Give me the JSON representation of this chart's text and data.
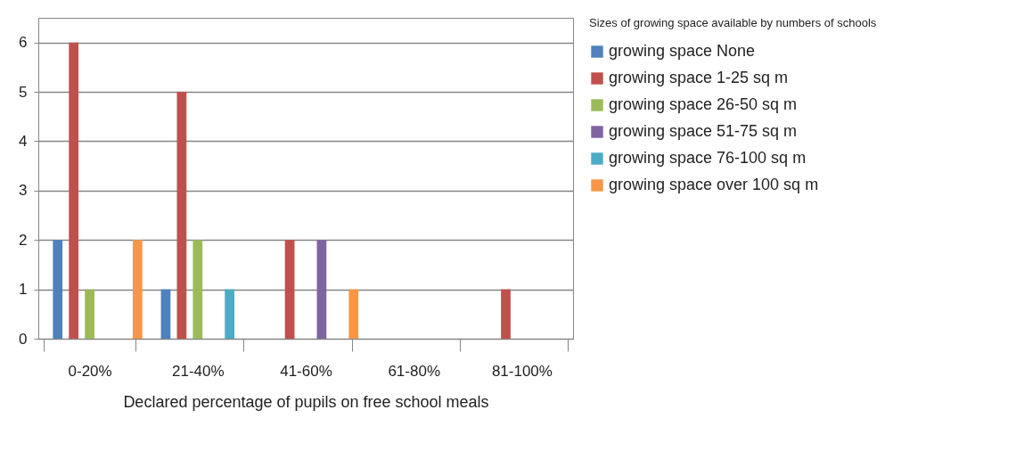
{
  "chart_data": {
    "type": "bar",
    "xlabel": "Declared percentage of pupils on free school meals",
    "legend_title": "Sizes of growing space available by numbers of schools",
    "categories": [
      "0-20%",
      "21-40%",
      "41-60%",
      "61-80%",
      "81-100%"
    ],
    "series": [
      {
        "name": "growing space None",
        "color": "#4f81bd",
        "values": [
          2,
          1,
          0,
          0,
          0
        ]
      },
      {
        "name": "growing space 1-25 sq m",
        "color": "#c0504d",
        "values": [
          6,
          5,
          2,
          0,
          1
        ]
      },
      {
        "name": "growing space 26-50 sq m",
        "color": "#9bbb59",
        "values": [
          1,
          2,
          0,
          0,
          0
        ]
      },
      {
        "name": "growing space 51-75 sq m",
        "color": "#8064a2",
        "values": [
          0,
          0,
          2,
          0,
          0
        ]
      },
      {
        "name": "growing space 76-100 sq m",
        "color": "#4bacc6",
        "values": [
          0,
          1,
          0,
          0,
          0
        ]
      },
      {
        "name": "growing space over 100 sq m",
        "color": "#f79646",
        "values": [
          2,
          0,
          1,
          0,
          0
        ]
      }
    ],
    "ylim": [
      0,
      6.5
    ],
    "yticks": [
      0,
      1,
      2,
      3,
      4,
      5,
      6
    ],
    "grid": "y",
    "legend": "right"
  }
}
